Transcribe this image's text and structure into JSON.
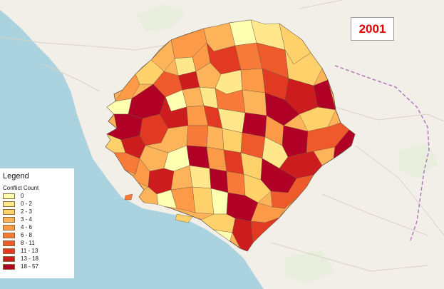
{
  "map": {
    "year": "2001",
    "legend_title": "Legend",
    "legend_subtitle": "Conflict Count",
    "legend_items": [
      {
        "label": "0",
        "color": "#ffffb2"
      },
      {
        "label": "0 - 2",
        "color": "#fee88b"
      },
      {
        "label": "2 - 3",
        "color": "#fed16b"
      },
      {
        "label": "3 - 4",
        "color": "#fdb35a"
      },
      {
        "label": "4 - 6",
        "color": "#fc9a47"
      },
      {
        "label": "6 - 8",
        "color": "#f87a38"
      },
      {
        "label": "8 - 11",
        "color": "#ef5a2c"
      },
      {
        "label": "11 - 13",
        "color": "#e23a22"
      },
      {
        "label": "13 - 18",
        "color": "#cc1c1e"
      },
      {
        "label": "18 - 57",
        "color": "#b10026"
      }
    ],
    "colors": {
      "sea": "#aad3df",
      "land": "#f2efe9",
      "border": "#b07ab5"
    }
  }
}
